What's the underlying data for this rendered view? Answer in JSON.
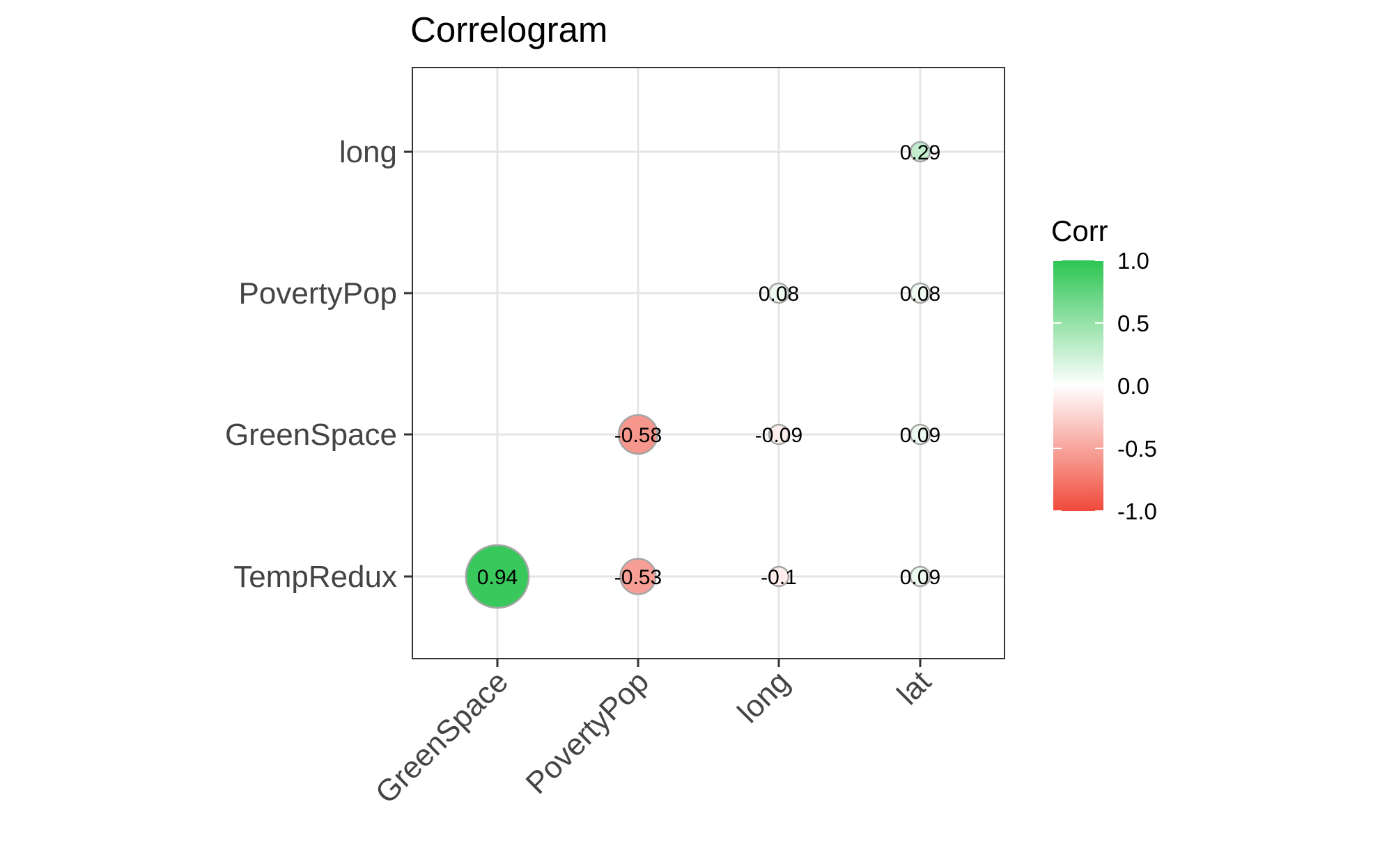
{
  "chart_data": {
    "type": "correlogram",
    "title": "Correlogram",
    "x_categories": [
      "GreenSpace",
      "PovertyPop",
      "long",
      "lat"
    ],
    "y_categories": [
      "TempRedux",
      "GreenSpace",
      "PovertyPop",
      "long"
    ],
    "cells": [
      {
        "x": "GreenSpace",
        "y": "TempRedux",
        "value": 0.94,
        "label": "0.94"
      },
      {
        "x": "PovertyPop",
        "y": "TempRedux",
        "value": -0.53,
        "label": "-0.53"
      },
      {
        "x": "long",
        "y": "TempRedux",
        "value": -0.1,
        "label": "-0.1"
      },
      {
        "x": "lat",
        "y": "TempRedux",
        "value": 0.09,
        "label": "0.09"
      },
      {
        "x": "PovertyPop",
        "y": "GreenSpace",
        "value": -0.58,
        "label": "-0.58"
      },
      {
        "x": "long",
        "y": "GreenSpace",
        "value": -0.09,
        "label": "-0.09"
      },
      {
        "x": "lat",
        "y": "GreenSpace",
        "value": 0.09,
        "label": "0.09"
      },
      {
        "x": "long",
        "y": "PovertyPop",
        "value": 0.08,
        "label": "0.08"
      },
      {
        "x": "lat",
        "y": "PovertyPop",
        "value": 0.08,
        "label": "0.08"
      },
      {
        "x": "lat",
        "y": "long",
        "value": 0.29,
        "label": "0.29"
      }
    ],
    "legend": {
      "title": "Corr",
      "ticks": [
        "1.0",
        "0.5",
        "0.0",
        "-0.5",
        "-1.0"
      ],
      "tick_values": [
        1.0,
        0.5,
        0.0,
        -0.5,
        -1.0
      ],
      "range": [
        -1,
        1
      ],
      "position": "right"
    },
    "colors": {
      "low": "#F04A3A",
      "mid": "#FFFFFF",
      "high": "#2CC552"
    },
    "grid": true
  }
}
